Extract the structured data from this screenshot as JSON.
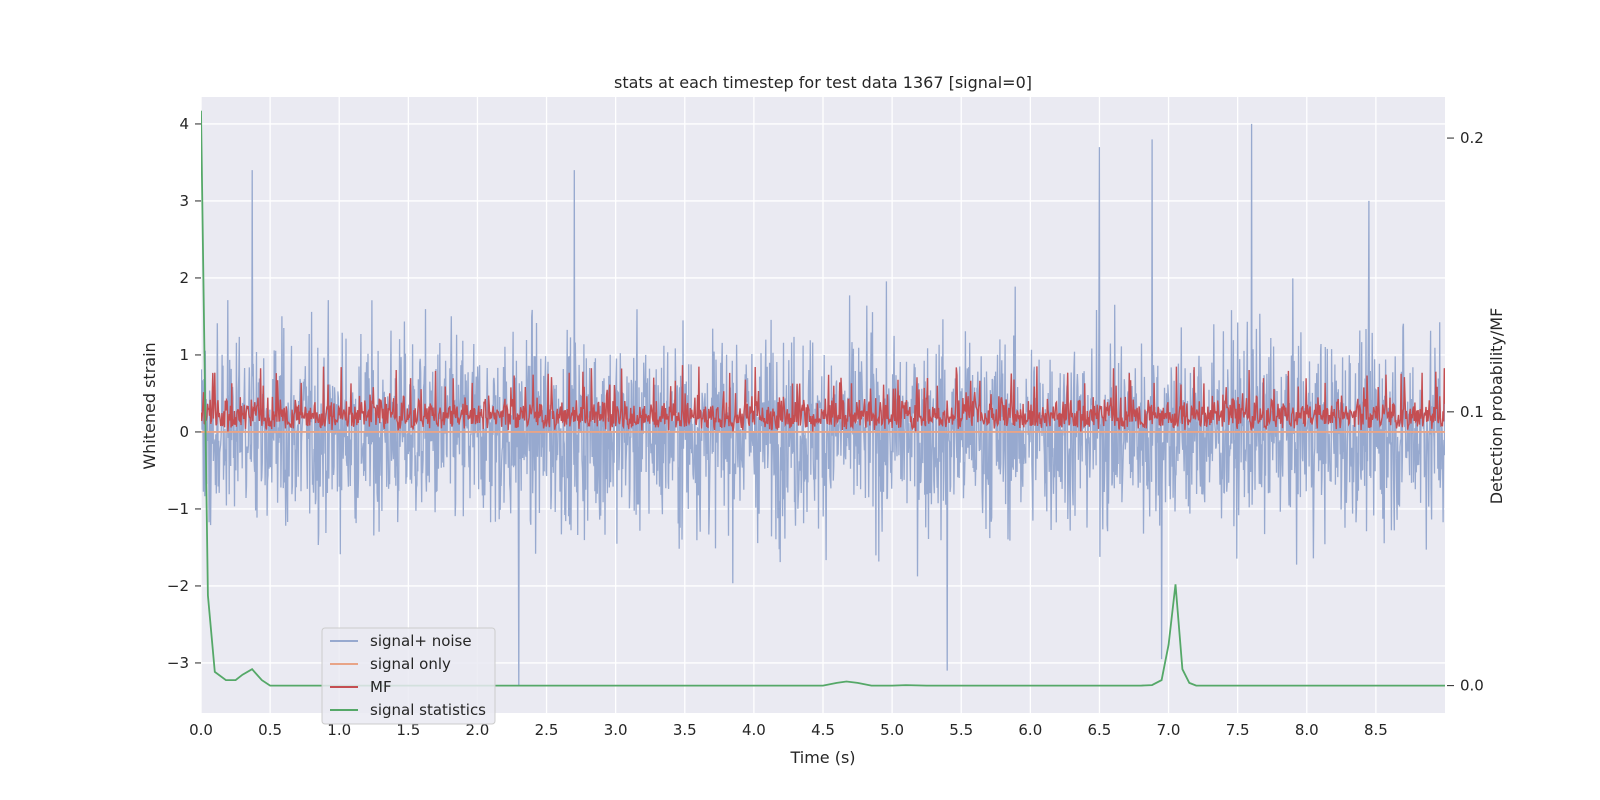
{
  "chart_data": {
    "type": "line",
    "title": "stats at each timestep for test data 1367 [signal=0]",
    "xlabel": "Time (s)",
    "ylabel": "Whitened strain",
    "y2label": "Detection probability/MF",
    "xlim": [
      0,
      9.0
    ],
    "ylim": [
      -3.65,
      4.35
    ],
    "y2lim": [
      -0.01,
      0.215
    ],
    "xticks": [
      0.0,
      0.5,
      1.0,
      1.5,
      2.0,
      2.5,
      3.0,
      3.5,
      4.0,
      4.5,
      5.0,
      5.5,
      6.0,
      6.5,
      7.0,
      7.5,
      8.0,
      8.5
    ],
    "xtick_labels": [
      "0.0",
      "0.5",
      "1.0",
      "1.5",
      "2.0",
      "2.5",
      "3.0",
      "3.5",
      "4.0",
      "4.5",
      "5.0",
      "5.5",
      "6.0",
      "6.5",
      "7.0",
      "7.5",
      "8.0",
      "8.5"
    ],
    "yticks": [
      -3,
      -2,
      -1,
      0,
      1,
      2,
      3,
      4
    ],
    "ytick_labels": [
      "−3",
      "−2",
      "−1",
      "0",
      "1",
      "2",
      "3",
      "4"
    ],
    "y2ticks": [
      0.0,
      0.1,
      0.2
    ],
    "y2tick_labels": [
      "0.0",
      "0.1",
      "0.2"
    ],
    "grid": true,
    "legend_position": "lower-left",
    "colors": {
      "plot_bg": "#eaeaf2",
      "grid": "#ffffff",
      "noise": "#97a9cf",
      "signal": "#e8a487",
      "mf": "#c44e52",
      "stats": "#55a868"
    },
    "series": [
      {
        "name": "signal+ noise",
        "axis": "left",
        "style": "noise",
        "summary": {
          "typical_low": -1.5,
          "typical_high": 1.6,
          "min": -3.3,
          "max": 4.0
        },
        "peaks": [
          {
            "x": 0.37,
            "y": 3.4
          },
          {
            "x": 2.7,
            "y": 3.4
          },
          {
            "x": 6.5,
            "y": 3.7
          },
          {
            "x": 6.88,
            "y": 3.8
          },
          {
            "x": 7.6,
            "y": 4.0
          },
          {
            "x": 8.45,
            "y": 3.0
          },
          {
            "x": 2.3,
            "y": -3.3
          },
          {
            "x": 5.4,
            "y": -3.1
          },
          {
            "x": 6.95,
            "y": -2.95
          }
        ]
      },
      {
        "name": "signal only",
        "axis": "left",
        "style": "signal",
        "x": [
          0,
          9.0
        ],
        "y": [
          0,
          0
        ]
      },
      {
        "name": "MF",
        "axis": "left",
        "style": "mf",
        "summary": {
          "typical_low": 0.0,
          "typical_high": 0.6,
          "max": 0.87
        }
      },
      {
        "name": "signal statistics",
        "axis": "right",
        "style": "stats",
        "x": [
          0.0,
          0.05,
          0.1,
          0.18,
          0.25,
          0.3,
          0.37,
          0.44,
          0.5,
          0.6,
          1.0,
          2.0,
          3.0,
          4.0,
          4.5,
          4.6,
          4.67,
          4.75,
          4.85,
          5.0,
          5.1,
          5.25,
          5.5,
          6.0,
          6.5,
          6.8,
          6.88,
          6.95,
          7.0,
          7.05,
          7.1,
          7.15,
          7.2,
          7.3,
          8.0,
          9.0
        ],
        "y": [
          0.21,
          0.033,
          0.005,
          0.002,
          0.002,
          0.004,
          0.006,
          0.002,
          0.0,
          0.0,
          0.0,
          0.0,
          0.0,
          0.0,
          0.0,
          0.001,
          0.0015,
          0.001,
          0.0,
          0.0,
          0.0002,
          0.0,
          0.0,
          0.0,
          0.0,
          0.0,
          0.0002,
          0.002,
          0.015,
          0.037,
          0.006,
          0.001,
          0.0,
          0.0,
          0.0,
          0.0
        ]
      }
    ]
  }
}
